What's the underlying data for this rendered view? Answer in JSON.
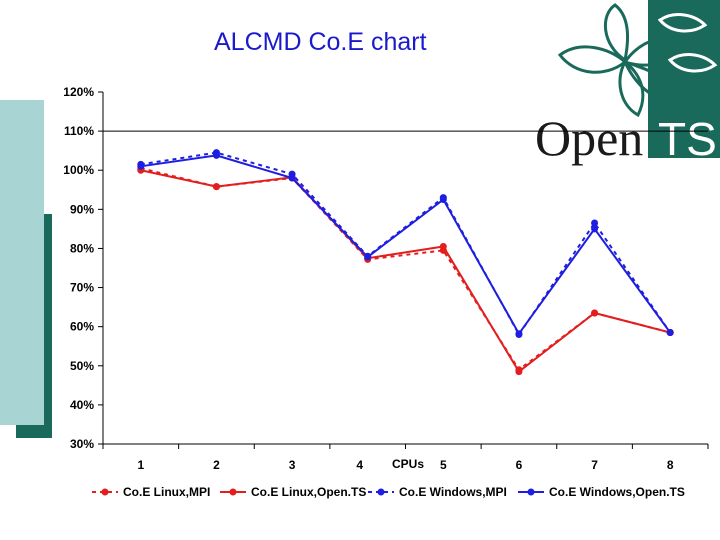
{
  "slide": {
    "title": "ALCMD Co.E chart",
    "logo_text": "Open TS"
  },
  "colors": {
    "red": "#e31e1e",
    "blue": "#1e1ee0",
    "teal_dark": "#1a6a5c",
    "teal_light": "#a8d4d4"
  },
  "chart_data": {
    "type": "line",
    "title": "",
    "xlabel": "CPUs",
    "ylabel": "",
    "x": [
      1,
      2,
      3,
      4,
      5,
      6,
      7,
      8
    ],
    "x_tick_labels": [
      "1",
      "2",
      "3",
      "4",
      "5",
      "6",
      "7",
      "8"
    ],
    "ylim": [
      30,
      120
    ],
    "y_ticks": [
      30,
      40,
      50,
      60,
      70,
      80,
      90,
      100,
      110,
      120
    ],
    "y_tick_labels": [
      "30%",
      "40%",
      "50%",
      "60%",
      "70%",
      "80%",
      "90%",
      "100%",
      "110%",
      "120%"
    ],
    "gridlines_y": [
      110
    ],
    "legend_position": "bottom",
    "series": [
      {
        "name": "Co.E Linux,MPI",
        "color": "#e31e1e",
        "dashed": true,
        "values": [
          100.5,
          95.8,
          98,
          77.2,
          79.5,
          49,
          63.5,
          58.5
        ]
      },
      {
        "name": "Co.E Linux,Open.TS",
        "color": "#e31e1e",
        "dashed": false,
        "values": [
          100,
          95.8,
          98.2,
          77.5,
          80.5,
          48.5,
          63.5,
          58.5
        ]
      },
      {
        "name": "Co.E Windows,MPI",
        "color": "#1e1ee0",
        "dashed": true,
        "values": [
          101.5,
          104.5,
          99,
          78,
          93,
          58,
          86.5,
          58.5
        ]
      },
      {
        "name": "Co.E Windows,Open.TS",
        "color": "#1e1ee0",
        "dashed": false,
        "values": [
          101,
          103.8,
          98,
          77.8,
          92.5,
          58.2,
          85,
          58.5
        ]
      }
    ]
  }
}
